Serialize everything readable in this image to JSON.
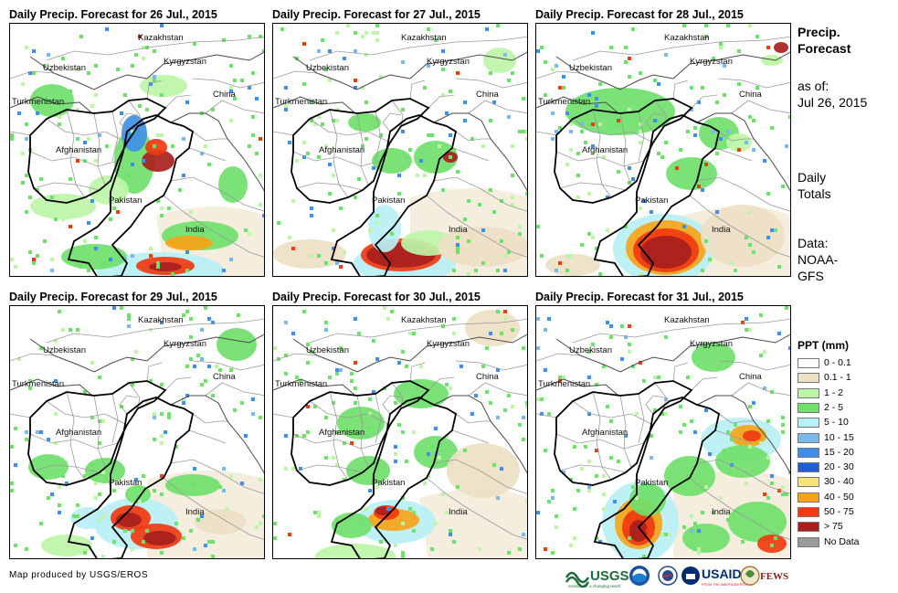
{
  "panels": [
    {
      "title": "Daily Precip. Forecast for 26 Jul., 2015",
      "day": 26
    },
    {
      "title": "Daily Precip. Forecast for 27 Jul., 2015",
      "day": 27
    },
    {
      "title": "Daily Precip. Forecast for 28 Jul., 2015",
      "day": 28
    },
    {
      "title": "Daily Precip. Forecast for 29 Jul., 2015",
      "day": 29
    },
    {
      "title": "Daily Precip. Forecast for 30 Jul., 2015",
      "day": 30
    },
    {
      "title": "Daily Precip. Forecast for 31 Jul., 2015",
      "day": 31
    }
  ],
  "country_labels": [
    "Kazakhstan",
    "Uzbekistan",
    "Kyrgyzstan",
    "Turkmenistan",
    "China",
    "Afghanistan",
    "Pakistan",
    "India"
  ],
  "side_info": {
    "title_line1": "Precip.",
    "title_line2": "Forecast",
    "asof_line1": "as of:",
    "asof_line2": "Jul 26, 2015",
    "daily_line1": "Daily",
    "daily_line2": "Totals",
    "data_line1": "Data:",
    "data_line2": "NOAA-",
    "data_line3": "GFS"
  },
  "legend": {
    "title": "PPT (mm)",
    "items": [
      {
        "label": "0 - 0.1",
        "color": "#ffffff"
      },
      {
        "label": "0.1 - 1",
        "color": "#ede0c4"
      },
      {
        "label": "1 - 2",
        "color": "#bdf5a8"
      },
      {
        "label": "2 - 5",
        "color": "#6fe06a"
      },
      {
        "label": "5 - 10",
        "color": "#b7f0f5"
      },
      {
        "label": "10 - 15",
        "color": "#7ab9ee"
      },
      {
        "label": "15 - 20",
        "color": "#3f8fe8"
      },
      {
        "label": "20 - 30",
        "color": "#1f5fd6"
      },
      {
        "label": "30 - 40",
        "color": "#f7e37a"
      },
      {
        "label": "40 - 50",
        "color": "#f7a318"
      },
      {
        "label": "50 - 75",
        "color": "#f03a10"
      },
      {
        "label": "> 75",
        "color": "#a8201e"
      },
      {
        "label": "No Data",
        "color": "#9a9a9a"
      }
    ]
  },
  "footer": {
    "credit": "Map produced by USGS/EROS",
    "logo_usgs": "USGS",
    "logo_usgs_tagline": "science for a changing world",
    "logo_usaid": "USAID",
    "logo_usaid_tagline": "FROM THE AMERICAN PEOPLE",
    "logo_fews": "FEWS NET"
  }
}
